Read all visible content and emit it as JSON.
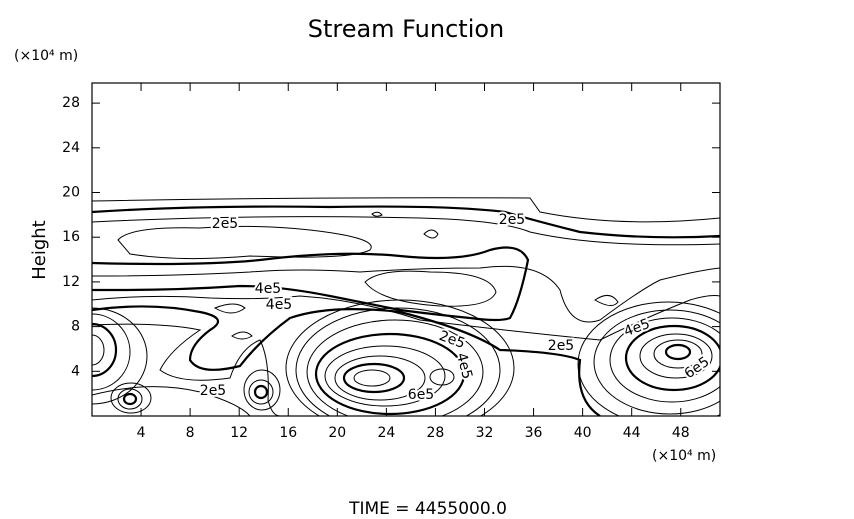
{
  "chart_data": {
    "type": "contour",
    "title": "Stream Function",
    "y_unit": "(×10⁴ m)",
    "x_unit": "(×10⁴ m)",
    "ylabel": "Height",
    "footer": "TIME = 4455000.0",
    "xlim": [
      0,
      51.2
    ],
    "ylim": [
      0,
      29.8
    ],
    "xticks": [
      4,
      8,
      12,
      16,
      20,
      24,
      28,
      32,
      36,
      40,
      44,
      48
    ],
    "yticks": [
      4,
      8,
      12,
      16,
      20,
      24,
      28
    ],
    "contour_labels": [
      "2e5",
      "2e5",
      "4e5",
      "4e5",
      "2e5",
      "2e5",
      "4e5",
      "2e5",
      "4e5",
      "6e5",
      "6e5"
    ]
  }
}
